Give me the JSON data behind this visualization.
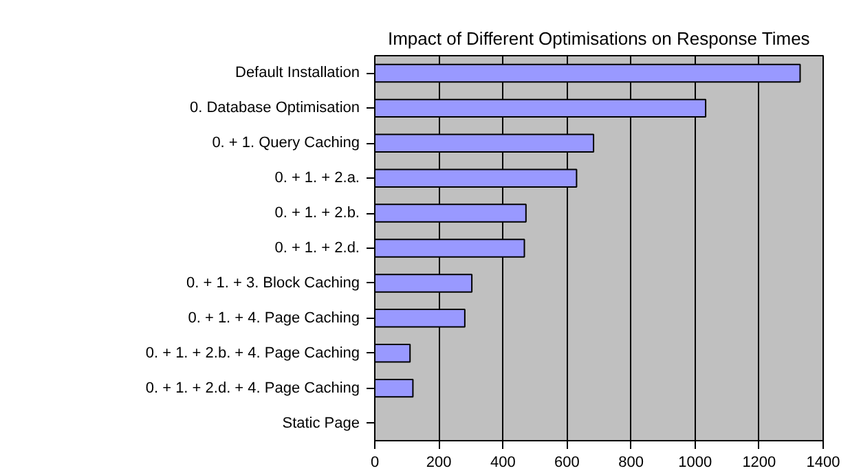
{
  "chart_data": {
    "type": "bar",
    "orientation": "horizontal",
    "title": "Impact of Different Optimisations on Response Times",
    "categories": [
      "Default Installation",
      "0. Database Optimisation",
      "0. + 1. Query Caching",
      "0. + 1. + 2.a.",
      "0. + 1. + 2.b.",
      "0. + 1. + 2.d.",
      "0. + 1. + 3. Block Caching",
      "0. + 1. + 4. Page Caching",
      "0. + 1. + 2.b. + 4. Page Caching",
      "0. + 1. + 2.d. + 4. Page Caching",
      "Static Page"
    ],
    "values": [
      1328,
      1033,
      683,
      630,
      472,
      467,
      303,
      281,
      110,
      119,
      0
    ],
    "color": "#9999ff",
    "xlim": [
      0,
      1400
    ],
    "xticks": [
      0,
      200,
      400,
      600,
      800,
      1000,
      1200,
      1400
    ],
    "grid": "x"
  }
}
